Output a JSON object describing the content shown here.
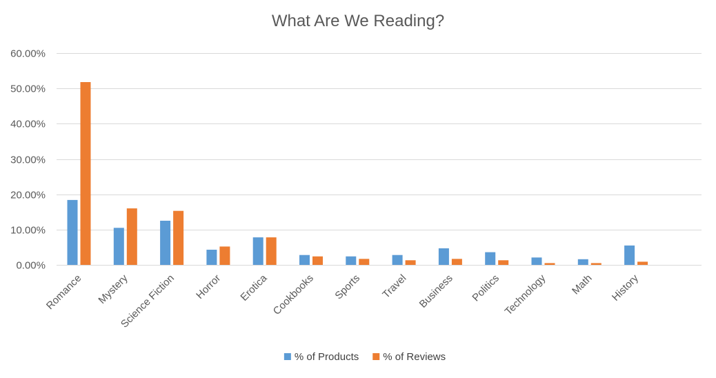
{
  "chart_data": {
    "type": "bar",
    "title": "What Are We Reading?",
    "xlabel": "",
    "ylabel": "",
    "categories": [
      "Romance",
      "Mystery",
      "Science Fiction",
      "Horror",
      "Erotica",
      "Cookbooks",
      "Sports",
      "Travel",
      "Business",
      "Politics",
      "Technology",
      "Math",
      "History"
    ],
    "series": [
      {
        "name": "% of Products",
        "color": "#5B9BD5",
        "values": [
          0.184,
          0.105,
          0.125,
          0.043,
          0.078,
          0.028,
          0.024,
          0.028,
          0.047,
          0.036,
          0.021,
          0.016,
          0.055
        ]
      },
      {
        "name": "% of Reviews",
        "color": "#ED7D31",
        "values": [
          0.518,
          0.16,
          0.153,
          0.052,
          0.078,
          0.024,
          0.017,
          0.013,
          0.017,
          0.013,
          0.005,
          0.005,
          0.009
        ]
      }
    ],
    "ylim": [
      0,
      0.6
    ],
    "yticks": [
      0,
      0.1,
      0.2,
      0.3,
      0.4,
      0.5,
      0.6
    ],
    "ytick_labels": [
      "0.00%",
      "10.00%",
      "20.00%",
      "30.00%",
      "40.00%",
      "50.00%",
      "60.00%"
    ],
    "grid": true,
    "legend_position": "bottom"
  }
}
